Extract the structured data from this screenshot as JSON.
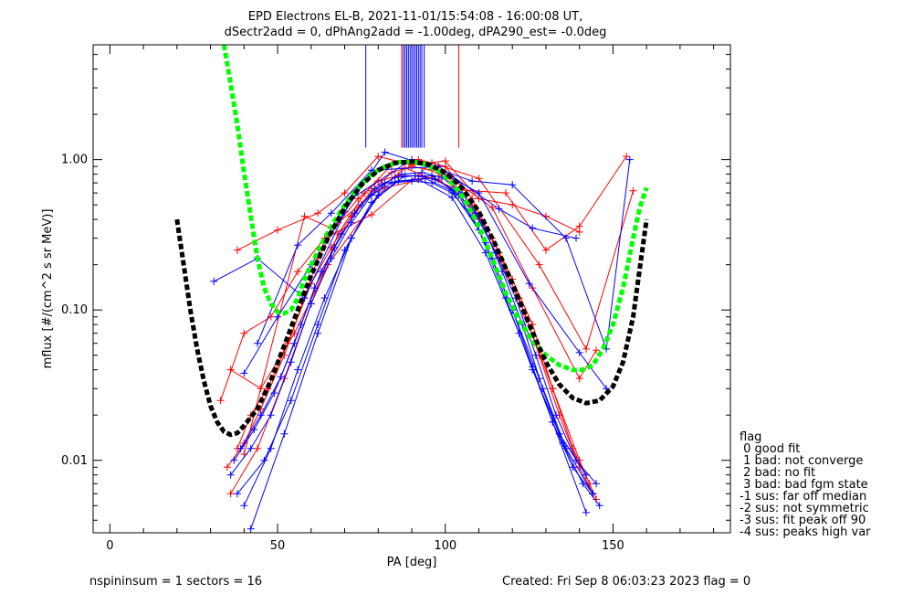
{
  "chart_data": {
    "type": "line",
    "title": "EPD Electrons EL-B, 2021-11-01/15:54:08 - 16:00:08 UT,",
    "subtitle": "dSectr2add = 0, dPhAng2add = -1.00deg, dPA290_est=  -0.0deg",
    "xlabel": "PA [deg]",
    "ylabel": "mflux [#/(cm^2 s sr MeV)]",
    "xlim": [
      -5,
      185
    ],
    "ylim": [
      0.0033,
      5.8
    ],
    "yscale": "log",
    "xticks": [
      0,
      50,
      100,
      150
    ],
    "yticks": [
      {
        "v": 0.01,
        "label": "0.01"
      },
      {
        "v": 0.1,
        "label": "0.10"
      },
      {
        "v": 1.0,
        "label": "1.00"
      }
    ],
    "series": [
      {
        "color": "#ff0000",
        "style": "line+plus",
        "x": [
          35,
          40,
          45,
          52,
          58,
          62,
          68,
          74,
          80,
          86,
          92,
          98,
          104,
          110,
          116,
          122,
          128,
          134,
          140,
          144
        ],
        "y": [
          0.009,
          0.013,
          0.022,
          0.05,
          0.12,
          0.22,
          0.38,
          0.55,
          0.72,
          0.78,
          0.78,
          0.74,
          0.58,
          0.4,
          0.22,
          0.12,
          0.05,
          0.02,
          0.009,
          0.006
        ]
      },
      {
        "color": "#ff0000",
        "style": "line+plus",
        "x": [
          38,
          42,
          47,
          53,
          60,
          66,
          72,
          78,
          84,
          90,
          96,
          102,
          108,
          114,
          120,
          126,
          132,
          138,
          143
        ],
        "y": [
          0.012,
          0.02,
          0.03,
          0.06,
          0.15,
          0.26,
          0.42,
          0.62,
          0.82,
          0.9,
          0.85,
          0.7,
          0.5,
          0.3,
          0.16,
          0.08,
          0.03,
          0.012,
          0.007
        ]
      },
      {
        "color": "#ff0000",
        "style": "line+plus",
        "x": [
          36,
          44,
          52,
          60,
          68,
          76,
          84,
          92,
          100,
          108,
          116,
          124,
          132,
          140,
          145
        ],
        "y": [
          0.006,
          0.012,
          0.035,
          0.11,
          0.32,
          0.6,
          0.92,
          1.0,
          0.9,
          0.55,
          0.24,
          0.09,
          0.03,
          0.01,
          0.0055
        ]
      },
      {
        "color": "#ff0000",
        "style": "line+plus",
        "x": [
          38,
          50,
          62,
          70,
          80,
          90,
          100,
          110,
          120,
          130,
          140
        ],
        "y": [
          0.25,
          0.34,
          0.44,
          0.6,
          1.05,
          0.92,
          0.98,
          0.55,
          0.5,
          0.42,
          0.33
        ]
      },
      {
        "color": "#ff0000",
        "style": "line+plus",
        "x": [
          33,
          40,
          48,
          56,
          64,
          78,
          96,
          110,
          128,
          142,
          156
        ],
        "y": [
          0.025,
          0.07,
          0.09,
          0.18,
          0.3,
          0.43,
          0.95,
          0.75,
          0.2,
          0.055,
          0.62
        ]
      },
      {
        "color": "#ff0000",
        "style": "line+plus",
        "x": [
          36,
          45,
          55,
          65,
          82,
          100,
          114,
          126,
          140,
          145
        ],
        "y": [
          0.04,
          0.03,
          0.07,
          0.2,
          0.65,
          0.8,
          0.48,
          0.14,
          0.035,
          0.054
        ]
      },
      {
        "color": "#ff0000",
        "style": "line+plus",
        "x": [
          40,
          58,
          66,
          88,
          104,
          118,
          130,
          140,
          154
        ],
        "y": [
          0.011,
          0.42,
          0.35,
          0.88,
          0.63,
          0.6,
          0.25,
          0.36,
          1.05
        ]
      },
      {
        "color": "#0000ff",
        "style": "line+plus",
        "x": [
          36,
          42,
          48,
          54,
          60,
          66,
          72,
          78,
          84,
          90,
          96,
          102,
          108,
          114,
          120,
          126,
          132,
          138,
          144
        ],
        "y": [
          0.008,
          0.012,
          0.02,
          0.045,
          0.11,
          0.22,
          0.38,
          0.58,
          0.7,
          0.72,
          0.7,
          0.6,
          0.42,
          0.22,
          0.1,
          0.042,
          0.018,
          0.009,
          0.006
        ]
      },
      {
        "color": "#0000ff",
        "style": "line+plus",
        "x": [
          37,
          43,
          49,
          55,
          61,
          67,
          73,
          79,
          85,
          91,
          97,
          103,
          109,
          115,
          121,
          127,
          133,
          139,
          145
        ],
        "y": [
          0.01,
          0.016,
          0.028,
          0.06,
          0.14,
          0.26,
          0.44,
          0.64,
          0.76,
          0.78,
          0.74,
          0.62,
          0.44,
          0.24,
          0.12,
          0.05,
          0.02,
          0.01,
          0.007
        ]
      },
      {
        "color": "#0000ff",
        "style": "line+plus",
        "x": [
          39,
          45,
          51,
          57,
          63,
          69,
          75,
          81,
          87,
          93,
          99,
          105,
          111,
          117,
          123,
          129,
          135,
          141,
          146
        ],
        "y": [
          0.012,
          0.02,
          0.036,
          0.08,
          0.18,
          0.32,
          0.5,
          0.68,
          0.8,
          0.82,
          0.76,
          0.6,
          0.38,
          0.18,
          0.08,
          0.03,
          0.013,
          0.007,
          0.005
        ]
      },
      {
        "color": "#0000ff",
        "style": "line+plus",
        "x": [
          38,
          46,
          54,
          62,
          70,
          78,
          86,
          94,
          102,
          110,
          118,
          126,
          134,
          142
        ],
        "y": [
          0.006,
          0.01,
          0.025,
          0.08,
          0.25,
          0.52,
          0.72,
          0.75,
          0.62,
          0.34,
          0.12,
          0.04,
          0.015,
          0.008
        ]
      },
      {
        "color": "#0000ff",
        "style": "line+plus",
        "x": [
          40,
          48,
          56,
          64,
          72,
          80,
          88,
          96,
          104,
          112,
          120,
          128,
          136,
          144
        ],
        "y": [
          0.005,
          0.012,
          0.04,
          0.12,
          0.3,
          0.58,
          0.78,
          0.78,
          0.58,
          0.28,
          0.1,
          0.035,
          0.012,
          0.006
        ]
      },
      {
        "color": "#0000ff",
        "style": "line+plus",
        "x": [
          42,
          52,
          62,
          72,
          82,
          92,
          102,
          112,
          122,
          132,
          142
        ],
        "y": [
          0.0035,
          0.015,
          0.07,
          0.3,
          0.7,
          0.74,
          0.56,
          0.24,
          0.07,
          0.018,
          0.0045
        ]
      },
      {
        "color": "#0000ff",
        "style": "line+plus",
        "x": [
          31,
          44,
          58,
          72,
          90,
          108,
          120,
          136,
          148,
          155
        ],
        "y": [
          0.155,
          0.22,
          0.12,
          0.55,
          1.0,
          0.72,
          0.68,
          0.3,
          0.055,
          1.0
        ]
      },
      {
        "color": "#0000ff",
        "style": "line+plus",
        "x": [
          40,
          50,
          60,
          70,
          82,
          96,
          110,
          125,
          140,
          148
        ],
        "y": [
          0.038,
          0.09,
          0.2,
          0.45,
          1.12,
          0.9,
          0.6,
          0.15,
          0.052,
          0.03
        ]
      },
      {
        "color": "#0000ff",
        "style": "line+plus",
        "x": [
          44,
          56,
          66,
          78,
          98,
          116,
          126,
          139
        ],
        "y": [
          0.06,
          0.27,
          0.44,
          0.85,
          0.9,
          0.47,
          0.35,
          0.3
        ]
      }
    ],
    "fit_curves": [
      {
        "color": "#00ff00",
        "style": "dashed-thick",
        "x": [
          34,
          36,
          38,
          40,
          42,
          44,
          46,
          48,
          50,
          52,
          54,
          56,
          58,
          60,
          63,
          66,
          70,
          74,
          78,
          82,
          86,
          90,
          94,
          98,
          102,
          106,
          110,
          114,
          118,
          122,
          126,
          130,
          134,
          138,
          141,
          144,
          147,
          150,
          153,
          156,
          158,
          160
        ],
        "y": [
          5.8,
          3.2,
          1.7,
          0.82,
          0.42,
          0.22,
          0.14,
          0.11,
          0.097,
          0.095,
          0.1,
          0.12,
          0.16,
          0.2,
          0.27,
          0.36,
          0.5,
          0.65,
          0.8,
          0.9,
          0.96,
          0.97,
          0.93,
          0.84,
          0.7,
          0.53,
          0.36,
          0.22,
          0.13,
          0.085,
          0.062,
          0.05,
          0.043,
          0.04,
          0.04,
          0.043,
          0.055,
          0.08,
          0.14,
          0.3,
          0.48,
          0.65
        ]
      },
      {
        "color": "#000000",
        "style": "dashed-thick",
        "x": [
          20,
          22,
          24,
          26,
          28,
          30,
          32,
          34,
          36,
          38,
          40,
          44,
          48,
          52,
          56,
          60,
          65,
          70,
          75,
          80,
          85,
          90,
          95,
          100,
          105,
          110,
          115,
          120,
          125,
          130,
          134,
          138,
          142,
          146,
          150,
          153,
          156,
          158,
          160
        ],
        "y": [
          0.4,
          0.2,
          0.1,
          0.055,
          0.034,
          0.023,
          0.018,
          0.0155,
          0.0148,
          0.0152,
          0.017,
          0.022,
          0.034,
          0.058,
          0.1,
          0.17,
          0.3,
          0.48,
          0.68,
          0.85,
          0.95,
          0.97,
          0.93,
          0.82,
          0.65,
          0.45,
          0.27,
          0.15,
          0.08,
          0.045,
          0.032,
          0.026,
          0.024,
          0.025,
          0.031,
          0.045,
          0.09,
          0.19,
          0.4
        ]
      }
    ],
    "vertical_markers": [
      {
        "x": 76.3,
        "color": "#0000ff",
        "ymin": 1.2
      },
      {
        "x": 87.0,
        "color": "#ff0000",
        "ymin": 1.2
      },
      {
        "x": 87.5,
        "color": "#0000ff",
        "ymin": 1.2
      },
      {
        "x": 88.0,
        "color": "#0000ff",
        "ymin": 1.2
      },
      {
        "x": 88.5,
        "color": "#0000ff",
        "ymin": 1.2
      },
      {
        "x": 89.0,
        "color": "#0000ff",
        "ymin": 1.2
      },
      {
        "x": 89.5,
        "color": "#0000ff",
        "ymin": 1.2
      },
      {
        "x": 90.0,
        "color": "#0000ff",
        "ymin": 1.2
      },
      {
        "x": 90.5,
        "color": "#0000ff",
        "ymin": 1.2
      },
      {
        "x": 91.0,
        "color": "#0000ff",
        "ymin": 1.2
      },
      {
        "x": 91.5,
        "color": "#0000ff",
        "ymin": 1.2
      },
      {
        "x": 92.0,
        "color": "#0000ff",
        "ymin": 1.2
      },
      {
        "x": 92.5,
        "color": "#0000ff",
        "ymin": 1.2
      },
      {
        "x": 93.0,
        "color": "#0000ff",
        "ymin": 1.2
      },
      {
        "x": 93.7,
        "color": "#0000ff",
        "ymin": 1.2
      },
      {
        "x": 104.0,
        "color": "#ff0000",
        "ymin": 1.2
      }
    ],
    "legend": {
      "placement": "right, outside plot",
      "title": "flag",
      "entries": [
        " 0 good fit",
        " 1 bad: not converge",
        " 2 bad: no fit",
        " 3 bad: bad fgm state",
        "-1 sus: far off median",
        "-2 sus: not symmetric",
        "-3 sus: fit peak off 90",
        "-4 sus: peaks high var"
      ]
    }
  },
  "footer": {
    "left": "nspininsum =  1  sectors = 16",
    "right": "Created: Fri Sep  8 06:03:23 2023   flag = 0"
  }
}
